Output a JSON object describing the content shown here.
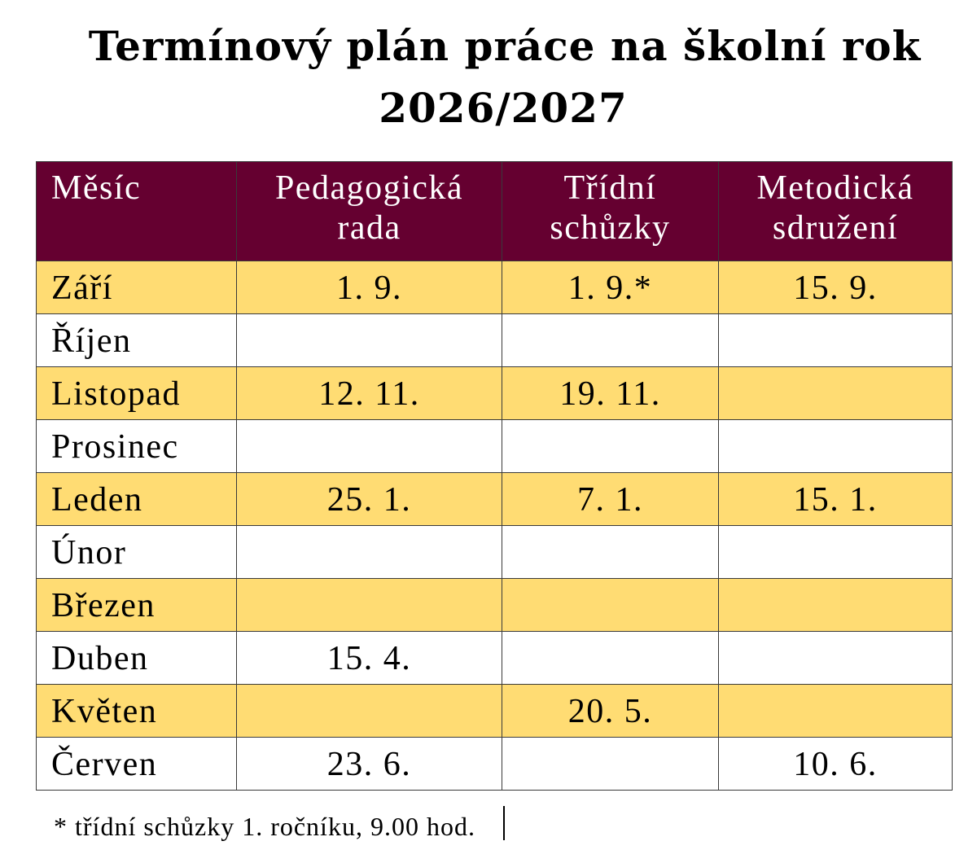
{
  "document": {
    "title_line1": "Termínový plán práce na školní rok",
    "title_line2": "2026/2027"
  },
  "colors": {
    "header_bg": "#650030",
    "band_bg": "#ffdc73",
    "plain_bg": "#ffffff"
  },
  "table": {
    "headers": [
      {
        "line1": "Měsíc",
        "line2": ""
      },
      {
        "line1": "Pedagogická",
        "line2": "rada"
      },
      {
        "line1": "Třídní",
        "line2": "schůzky"
      },
      {
        "line1": "Metodická",
        "line2": "sdružení"
      }
    ],
    "rows": [
      {
        "month": "Září",
        "pedagogicka_rada": "1. 9.",
        "tridni_schuzky": "1. 9.*",
        "metodicka_sdruzeni": "15. 9."
      },
      {
        "month": "Říjen",
        "pedagogicka_rada": "",
        "tridni_schuzky": "",
        "metodicka_sdruzeni": ""
      },
      {
        "month": "Listopad",
        "pedagogicka_rada": "12. 11.",
        "tridni_schuzky": "19. 11.",
        "metodicka_sdruzeni": ""
      },
      {
        "month": "Prosinec",
        "pedagogicka_rada": "",
        "tridni_schuzky": "",
        "metodicka_sdruzeni": ""
      },
      {
        "month": "Leden",
        "pedagogicka_rada": "25. 1.",
        "tridni_schuzky": "7. 1.",
        "metodicka_sdruzeni": "15. 1."
      },
      {
        "month": "Únor",
        "pedagogicka_rada": "",
        "tridni_schuzky": "",
        "metodicka_sdruzeni": ""
      },
      {
        "month": "Březen",
        "pedagogicka_rada": "",
        "tridni_schuzky": "",
        "metodicka_sdruzeni": ""
      },
      {
        "month": "Duben",
        "pedagogicka_rada": "15. 4.",
        "tridni_schuzky": "",
        "metodicka_sdruzeni": ""
      },
      {
        "month": "Květen",
        "pedagogicka_rada": "",
        "tridni_schuzky": "20. 5.",
        "metodicka_sdruzeni": ""
      },
      {
        "month": "Červen",
        "pedagogicka_rada": "23. 6.",
        "tridni_schuzky": "",
        "metodicka_sdruzeni": "10. 6."
      }
    ]
  },
  "footnote": "* třídní schůzky 1. ročníku, 9.00 hod."
}
